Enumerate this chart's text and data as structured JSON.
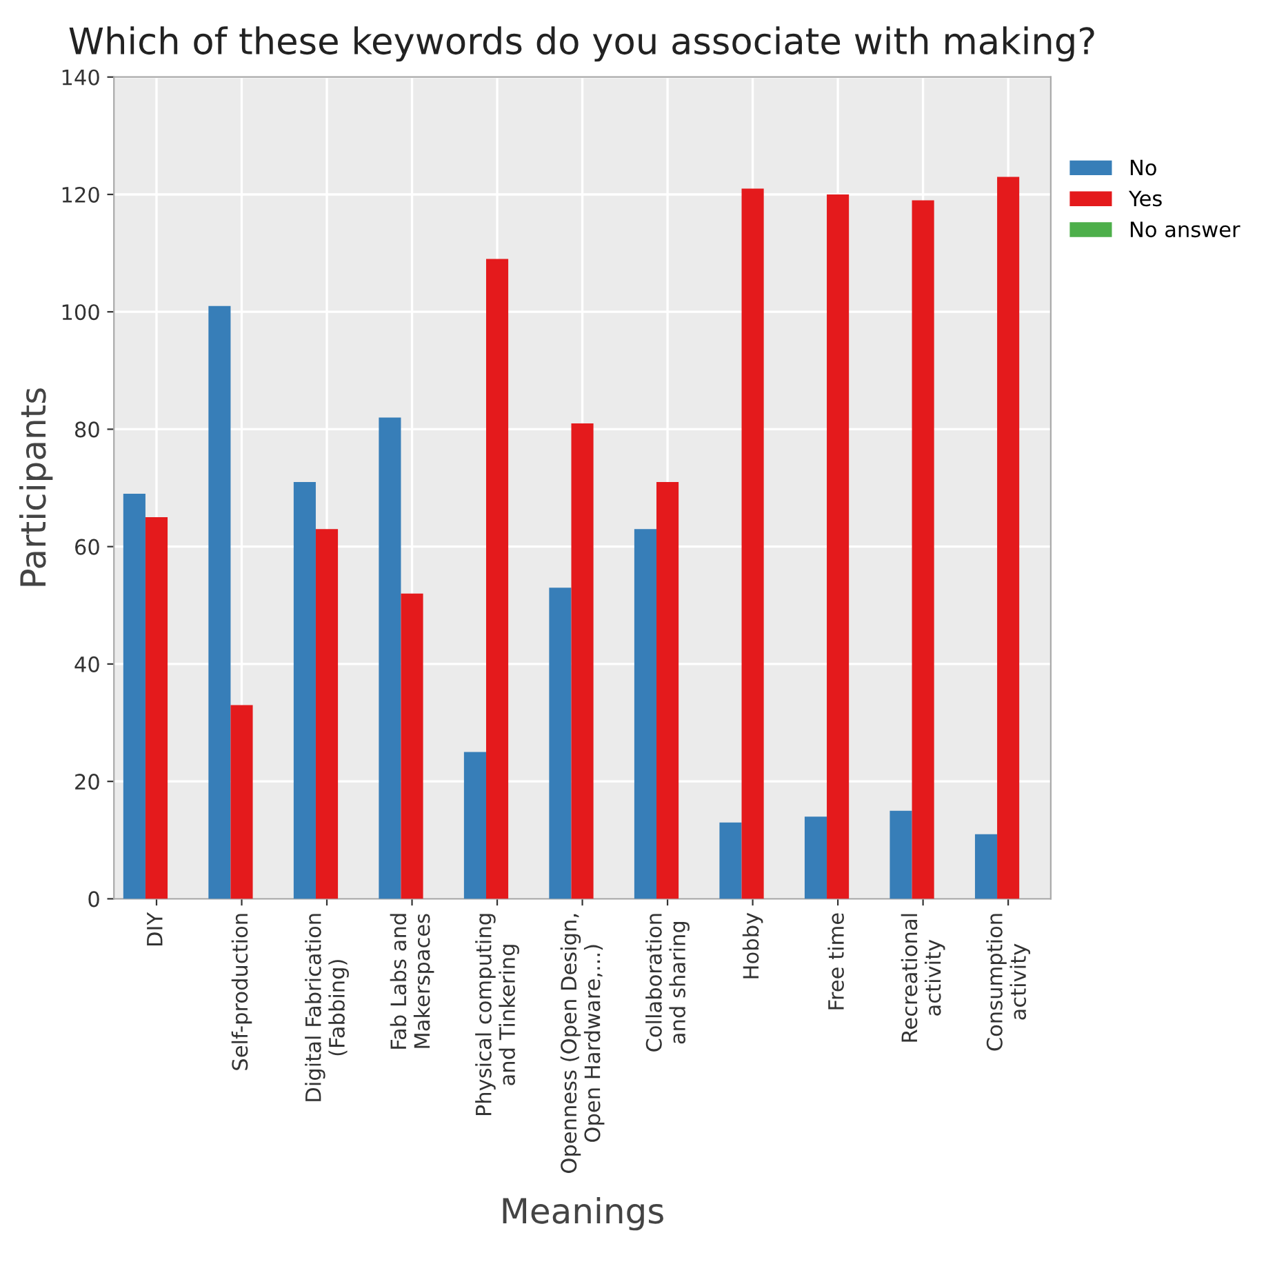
{
  "chart_data": {
    "type": "bar",
    "title": "Which of these keywords do you associate with making?",
    "xlabel": "Meanings",
    "ylabel": "Participants",
    "categories": [
      "DIY",
      "Self-production",
      "Digital Fabrication\n(Fabbing)",
      "Fab Labs and\nMakerspaces",
      "Physical computing\nand Tinkering",
      "Openness (Open Design,\nOpen Hardware,...)",
      "Collaboration\nand sharing",
      "Hobby",
      "Free time",
      "Recreational\nactivity",
      "Consumption\nactivity"
    ],
    "series": [
      {
        "name": "No",
        "color": "#377eb8",
        "values": [
          69,
          101,
          71,
          82,
          25,
          53,
          63,
          13,
          14,
          15,
          11
        ]
      },
      {
        "name": "Yes",
        "color": "#e41a1c",
        "values": [
          65,
          33,
          63,
          52,
          109,
          81,
          71,
          121,
          120,
          119,
          123
        ]
      },
      {
        "name": "No answer",
        "color": "#4daf4a",
        "values": [
          0,
          0,
          0,
          0,
          0,
          0,
          0,
          0,
          0,
          0,
          0
        ]
      }
    ],
    "ylim": [
      0,
      140
    ],
    "yticks": [
      0,
      20,
      40,
      60,
      80,
      100,
      120,
      140
    ],
    "grid": true,
    "legend": "right"
  }
}
